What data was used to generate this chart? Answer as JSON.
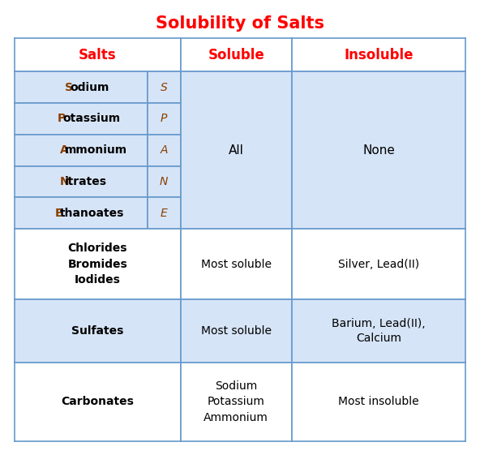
{
  "title": "Solubility of Salts",
  "title_color": "#FF0000",
  "title_fontsize": 15,
  "header_color": "#FF0000",
  "header_fontsize": 12,
  "headers": [
    "Salts",
    "Soluble",
    "Insoluble"
  ],
  "bg_light": "#D6E4F7",
  "bg_white": "#FFFFFF",
  "border_color": "#6699CC",
  "text_black": "#000000",
  "text_brown": "#8B4000",
  "spane_names": [
    "Sodium",
    "Potassium",
    "Ammonium",
    "Nitrates",
    "Ethanoates"
  ],
  "spane_letters": [
    "S",
    "P",
    "A",
    "N",
    "E"
  ],
  "spane_soluble": "All",
  "spane_insoluble": "None",
  "row2_salts": [
    "Chlorides",
    "Bromides",
    "Iodides"
  ],
  "row2_soluble": "Most soluble",
  "row2_insoluble": "Silver, Lead(II)",
  "row3_salts": [
    "Sulfates"
  ],
  "row3_soluble": "Most soluble",
  "row3_insoluble": "Barium, Lead(II),\nCalcium",
  "row4_salts": [
    "Carbonates"
  ],
  "row4_soluble": "Sodium\nPotassium\nAmmonium",
  "row4_insoluble": "Most insoluble",
  "fig_width": 5.92,
  "fig_height": 5.56,
  "dpi": 100
}
